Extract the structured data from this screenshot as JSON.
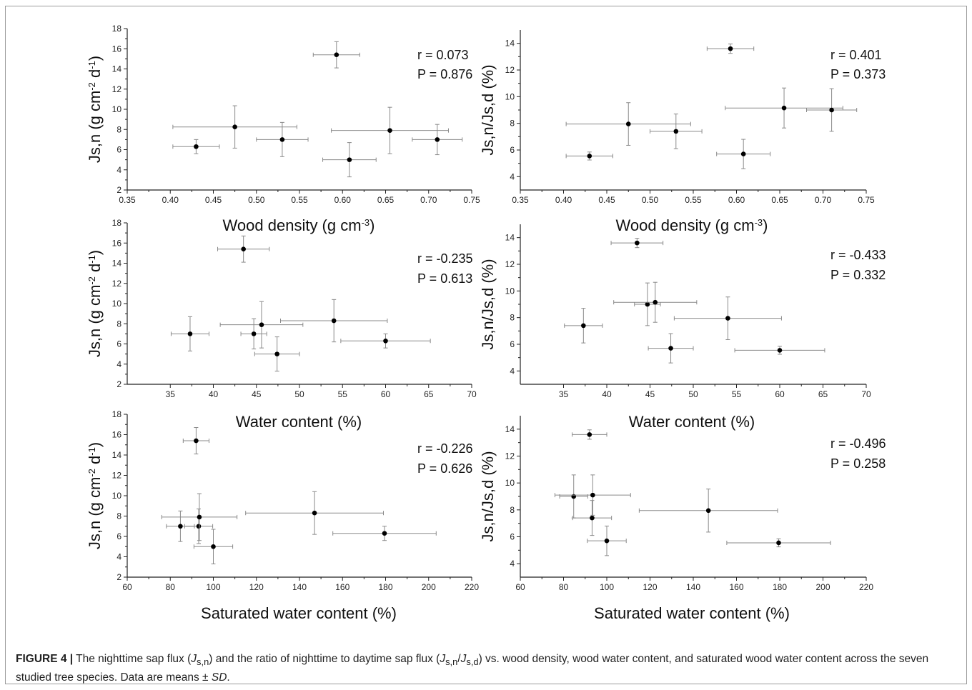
{
  "caption": {
    "label": "FIGURE 4 |",
    "pre": " The nighttime sap flux (",
    "sym1": "J",
    "sub1": "s,n",
    "mid1": ") and the ratio of nighttime to daytime sap flux (",
    "sym2": "J",
    "sub2": "s,n",
    "slash": "/",
    "sym3": "J",
    "sub3": "s,d",
    "post": ") vs. wood density, wood water content, and saturated wood water content across the seven studied tree species. Data are means ± ",
    "sd": "SD",
    "end": "."
  },
  "chart_data": [
    {
      "type": "scatter",
      "panel": "a",
      "xlabel": "Wood density (g cm⁻³)",
      "ylabel": "Js,n (g cm⁻² d⁻¹)",
      "xlim": [
        0.35,
        0.75
      ],
      "ylim": [
        2,
        18
      ],
      "xticks": [
        "0.35",
        "0.40",
        "0.45",
        "0.50",
        "0.55",
        "0.60",
        "0.65",
        "0.70",
        "0.75"
      ],
      "yticks": [
        "2",
        "4",
        "6",
        "8",
        "10",
        "12",
        "14",
        "16",
        "18"
      ],
      "annotations": [
        "r = 0.073",
        "P = 0.876"
      ],
      "points": [
        {
          "x": 0.43,
          "y": 6.3,
          "xerr": 0.027,
          "yerr": 0.7
        },
        {
          "x": 0.475,
          "y": 8.25,
          "xerr": 0.072,
          "yerr": 2.1
        },
        {
          "x": 0.53,
          "y": 7.0,
          "xerr": 0.03,
          "yerr": 1.7
        },
        {
          "x": 0.593,
          "y": 15.4,
          "xerr": 0.027,
          "yerr": 1.3
        },
        {
          "x": 0.608,
          "y": 5.0,
          "xerr": 0.031,
          "yerr": 1.7
        },
        {
          "x": 0.655,
          "y": 7.9,
          "xerr": 0.068,
          "yerr": 2.3
        },
        {
          "x": 0.71,
          "y": 7.0,
          "xerr": 0.029,
          "yerr": 1.5
        }
      ]
    },
    {
      "type": "scatter",
      "panel": "b",
      "xlabel": "Wood density (g cm⁻³)",
      "ylabel": "Js,n/Js,d (%)",
      "xlim": [
        0.35,
        0.75
      ],
      "ylim": [
        3,
        15
      ],
      "xticks": [
        "0.35",
        "0.40",
        "0.45",
        "0.50",
        "0.55",
        "0.60",
        "0.65",
        "0.70",
        "0.75"
      ],
      "yticks": [
        "4",
        "6",
        "8",
        "10",
        "12",
        "14"
      ],
      "annotations": [
        "r = 0.401",
        "P = 0.373"
      ],
      "points": [
        {
          "x": 0.43,
          "y": 5.55,
          "xerr": 0.027,
          "yerr": 0.3
        },
        {
          "x": 0.475,
          "y": 7.95,
          "xerr": 0.072,
          "yerr": 1.6
        },
        {
          "x": 0.53,
          "y": 7.4,
          "xerr": 0.03,
          "yerr": 1.3
        },
        {
          "x": 0.593,
          "y": 13.6,
          "xerr": 0.027,
          "yerr": 0.35
        },
        {
          "x": 0.608,
          "y": 5.7,
          "xerr": 0.031,
          "yerr": 1.1
        },
        {
          "x": 0.655,
          "y": 9.15,
          "xerr": 0.068,
          "yerr": 1.5
        },
        {
          "x": 0.71,
          "y": 9.0,
          "xerr": 0.029,
          "yerr": 1.6
        }
      ]
    },
    {
      "type": "scatter",
      "panel": "c",
      "xlabel": "Water content (%)",
      "ylabel": "Js,n (g cm⁻² d⁻¹)",
      "xlim": [
        30,
        70
      ],
      "ylim": [
        2,
        18
      ],
      "xticks": [
        "35",
        "40",
        "45",
        "50",
        "55",
        "60",
        "65",
        "70"
      ],
      "yticks": [
        "2",
        "4",
        "6",
        "8",
        "10",
        "12",
        "14",
        "16",
        "18"
      ],
      "annotations": [
        "r = -0.235",
        "P = 0.613"
      ],
      "points": [
        {
          "x": 37.3,
          "y": 7.0,
          "xerr": 2.2,
          "yerr": 1.7
        },
        {
          "x": 43.5,
          "y": 15.4,
          "xerr": 3.0,
          "yerr": 1.3
        },
        {
          "x": 44.7,
          "y": 7.0,
          "xerr": 1.5,
          "yerr": 1.5
        },
        {
          "x": 45.6,
          "y": 7.9,
          "xerr": 4.8,
          "yerr": 2.3
        },
        {
          "x": 47.4,
          "y": 5.0,
          "xerr": 2.6,
          "yerr": 1.7
        },
        {
          "x": 54.0,
          "y": 8.3,
          "xerr": 6.2,
          "yerr": 2.1
        },
        {
          "x": 60.0,
          "y": 6.3,
          "xerr": 5.2,
          "yerr": 0.7
        }
      ]
    },
    {
      "type": "scatter",
      "panel": "d",
      "xlabel": "Water content (%)",
      "ylabel": "Js,n/Js,d (%)",
      "xlim": [
        30,
        70
      ],
      "ylim": [
        3,
        15
      ],
      "xticks": [
        "35",
        "40",
        "45",
        "50",
        "55",
        "60",
        "65",
        "70"
      ],
      "yticks": [
        "4",
        "6",
        "8",
        "10",
        "12",
        "14"
      ],
      "annotations": [
        "r = -0.433",
        "P = 0.332"
      ],
      "points": [
        {
          "x": 37.3,
          "y": 7.4,
          "xerr": 2.2,
          "yerr": 1.3
        },
        {
          "x": 43.5,
          "y": 13.6,
          "xerr": 3.0,
          "yerr": 0.35
        },
        {
          "x": 44.7,
          "y": 9.0,
          "xerr": 1.5,
          "yerr": 1.6
        },
        {
          "x": 45.6,
          "y": 9.15,
          "xerr": 4.8,
          "yerr": 1.5
        },
        {
          "x": 47.4,
          "y": 5.7,
          "xerr": 2.6,
          "yerr": 1.1
        },
        {
          "x": 54.0,
          "y": 7.95,
          "xerr": 6.2,
          "yerr": 1.6
        },
        {
          "x": 60.0,
          "y": 5.55,
          "xerr": 5.2,
          "yerr": 0.3
        }
      ]
    },
    {
      "type": "scatter",
      "panel": "e",
      "xlabel": "Saturated water content (%)",
      "ylabel": "Js,n (g cm⁻² d⁻¹)",
      "xlim": [
        60,
        220
      ],
      "ylim": [
        2,
        18
      ],
      "xticks": [
        "60",
        "80",
        "100",
        "120",
        "140",
        "160",
        "180",
        "200",
        "220"
      ],
      "yticks": [
        "2",
        "4",
        "6",
        "8",
        "10",
        "12",
        "14",
        "16",
        "18"
      ],
      "annotations": [
        "r = -0.226",
        "P = 0.626"
      ],
      "points": [
        {
          "x": 84.7,
          "y": 7.0,
          "xerr": 6.5,
          "yerr": 1.5
        },
        {
          "x": 92.0,
          "y": 15.4,
          "xerr": 6.0,
          "yerr": 1.3
        },
        {
          "x": 93.2,
          "y": 7.0,
          "xerr": 6.5,
          "yerr": 1.7
        },
        {
          "x": 93.5,
          "y": 7.9,
          "xerr": 17.5,
          "yerr": 2.3
        },
        {
          "x": 100.0,
          "y": 5.0,
          "xerr": 9.0,
          "yerr": 1.7
        },
        {
          "x": 147.0,
          "y": 8.3,
          "xerr": 32.0,
          "yerr": 2.1
        },
        {
          "x": 179.5,
          "y": 6.3,
          "xerr": 24.0,
          "yerr": 0.7
        }
      ]
    },
    {
      "type": "scatter",
      "panel": "f",
      "xlabel": "Saturated water content (%)",
      "ylabel": "Js,n/Js,d (%)",
      "xlim": [
        60,
        220
      ],
      "ylim": [
        3,
        15
      ],
      "xticks": [
        "60",
        "80",
        "100",
        "120",
        "140",
        "160",
        "180",
        "200",
        "220"
      ],
      "yticks": [
        "4",
        "6",
        "8",
        "10",
        "12",
        "14"
      ],
      "annotations": [
        "r = -0.496",
        "P = 0.258"
      ],
      "points": [
        {
          "x": 84.7,
          "y": 9.0,
          "xerr": 6.5,
          "yerr": 1.6
        },
        {
          "x": 92.0,
          "y": 13.6,
          "xerr": 8.0,
          "yerr": 0.35
        },
        {
          "x": 93.2,
          "y": 7.4,
          "xerr": 9.0,
          "yerr": 1.3
        },
        {
          "x": 93.5,
          "y": 9.1,
          "xerr": 17.5,
          "yerr": 1.5
        },
        {
          "x": 100.0,
          "y": 5.7,
          "xerr": 9.0,
          "yerr": 1.1
        },
        {
          "x": 147.0,
          "y": 7.95,
          "xerr": 32.0,
          "yerr": 1.6
        },
        {
          "x": 179.5,
          "y": 5.55,
          "xerr": 24.0,
          "yerr": 0.3
        }
      ]
    }
  ]
}
